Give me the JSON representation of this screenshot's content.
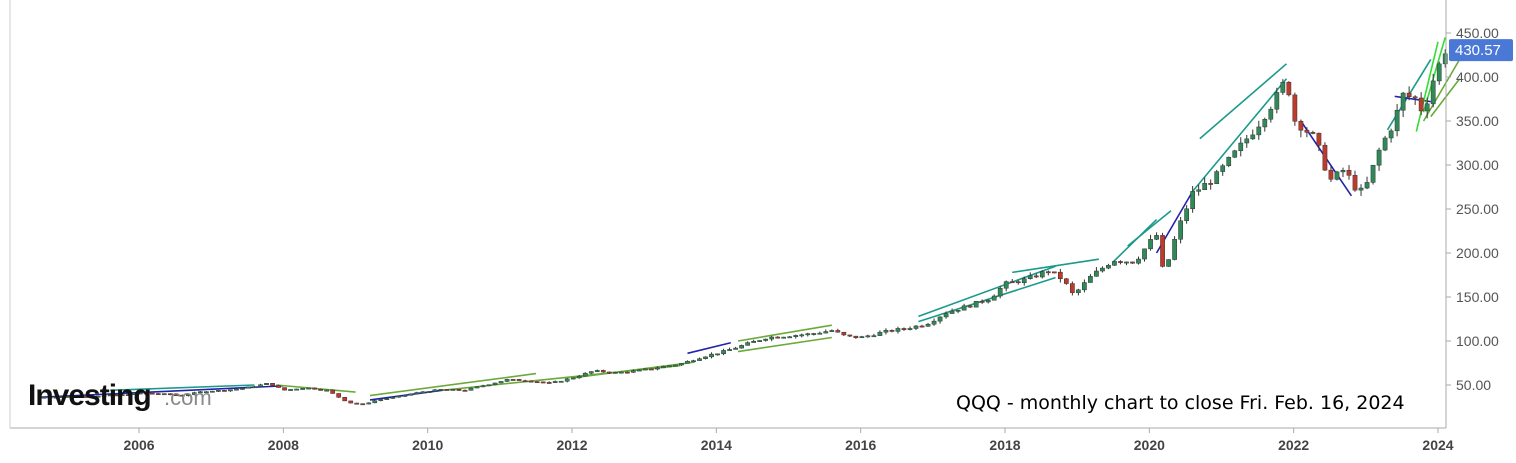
{
  "chart_data": {
    "type": "candlestick",
    "title": "",
    "xlabel": "",
    "ylabel": "",
    "annotation": "QQQ - monthly chart to close Fri. Feb. 16, 2024",
    "watermark": "Investing.com",
    "last_price": 430.57,
    "last_price_label": "430.57",
    "y_ticks": [
      "50.00",
      "100.00",
      "150.00",
      "200.00",
      "250.00",
      "300.00",
      "350.00",
      "400.00",
      "450.00"
    ],
    "y_tick_values": [
      50,
      100,
      150,
      200,
      250,
      300,
      350,
      400,
      450
    ],
    "x_ticks": [
      "2006",
      "2008",
      "2010",
      "2012",
      "2014",
      "2016",
      "2018",
      "2020",
      "2022",
      "2024"
    ],
    "x_tick_values": [
      2006,
      2008,
      2010,
      2012,
      2014,
      2016,
      2018,
      2020,
      2022,
      2024
    ],
    "xlim": [
      2004.6,
      2024.4
    ],
    "ylim": [
      0,
      470
    ],
    "grid": false,
    "colors": {
      "up": "#2e8b57",
      "down": "#c0392b",
      "axis": "#999999",
      "price_badge": "#4a78d6",
      "trend_teal": "#1a9a8a",
      "trend_green": "#6aaa3a",
      "trend_blue": "#2222aa",
      "trend_lime": "#33dd33"
    },
    "series": [
      {
        "role": "monthly-close",
        "points": [
          [
            2004.6,
            36
          ],
          [
            2004.9,
            37
          ],
          [
            2005.2,
            37
          ],
          [
            2005.5,
            38
          ],
          [
            2005.8,
            39
          ],
          [
            2006.0,
            41
          ],
          [
            2006.3,
            40
          ],
          [
            2006.6,
            38
          ],
          [
            2006.9,
            43
          ],
          [
            2007.2,
            44
          ],
          [
            2007.5,
            47
          ],
          [
            2007.8,
            52
          ],
          [
            2008.0,
            44
          ],
          [
            2008.3,
            47
          ],
          [
            2008.6,
            44
          ],
          [
            2008.9,
            30
          ],
          [
            2009.1,
            28
          ],
          [
            2009.3,
            33
          ],
          [
            2009.6,
            37
          ],
          [
            2009.9,
            42
          ],
          [
            2010.2,
            45
          ],
          [
            2010.5,
            44
          ],
          [
            2010.8,
            50
          ],
          [
            2011.1,
            56
          ],
          [
            2011.4,
            55
          ],
          [
            2011.7,
            52
          ],
          [
            2012.0,
            58
          ],
          [
            2012.3,
            66
          ],
          [
            2012.6,
            64
          ],
          [
            2012.9,
            66
          ],
          [
            2013.2,
            70
          ],
          [
            2013.5,
            74
          ],
          [
            2013.8,
            82
          ],
          [
            2014.1,
            88
          ],
          [
            2014.4,
            96
          ],
          [
            2014.7,
            104
          ],
          [
            2015.0,
            106
          ],
          [
            2015.3,
            108
          ],
          [
            2015.6,
            112
          ],
          [
            2015.8,
            105
          ],
          [
            2016.0,
            104
          ],
          [
            2016.3,
            110
          ],
          [
            2016.6,
            114
          ],
          [
            2016.9,
            119
          ],
          [
            2017.2,
            133
          ],
          [
            2017.5,
            140
          ],
          [
            2017.8,
            149
          ],
          [
            2018.0,
            165
          ],
          [
            2018.3,
            170
          ],
          [
            2018.6,
            180
          ],
          [
            2018.8,
            170
          ],
          [
            2018.95,
            152
          ],
          [
            2019.2,
            174
          ],
          [
            2019.5,
            192
          ],
          [
            2019.8,
            190
          ],
          [
            2020.0,
            212
          ],
          [
            2020.1,
            220
          ],
          [
            2020.2,
            175
          ],
          [
            2020.4,
            228
          ],
          [
            2020.6,
            268
          ],
          [
            2020.9,
            285
          ],
          [
            2021.2,
            315
          ],
          [
            2021.5,
            345
          ],
          [
            2021.8,
            382
          ],
          [
            2021.9,
            400
          ],
          [
            2022.0,
            352
          ],
          [
            2022.3,
            330
          ],
          [
            2022.5,
            282
          ],
          [
            2022.7,
            295
          ],
          [
            2022.9,
            268
          ],
          [
            2023.0,
            275
          ],
          [
            2023.2,
            320
          ],
          [
            2023.4,
            350
          ],
          [
            2023.5,
            380
          ],
          [
            2023.7,
            375
          ],
          [
            2023.8,
            358
          ],
          [
            2023.9,
            390
          ],
          [
            2024.0,
            410
          ],
          [
            2024.1,
            430.57
          ]
        ]
      }
    ]
  }
}
